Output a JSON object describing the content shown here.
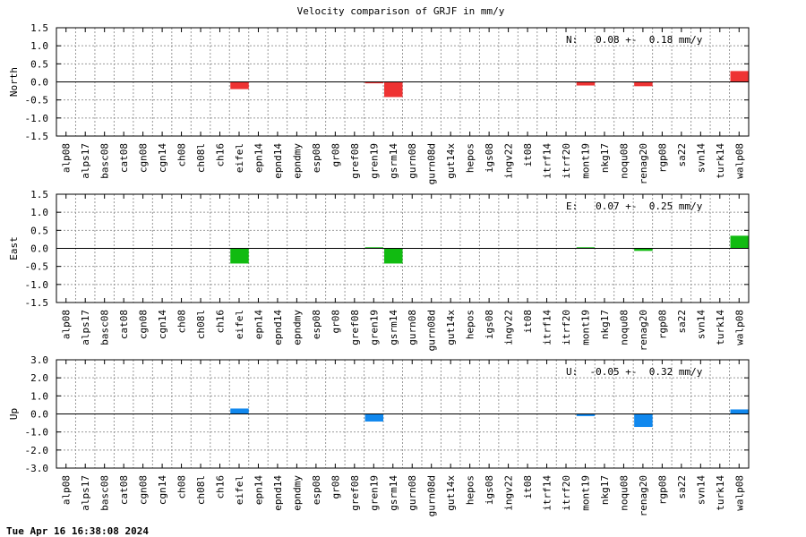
{
  "title": "Velocity comparison of GRJF in mm/y",
  "timestamp": "Tue Apr 16 16:38:08 2024",
  "chart_data": [
    {
      "type": "bar",
      "ylabel": "North",
      "color": "#ee3333",
      "ylim": [
        -1.5,
        1.5
      ],
      "yticks": [
        "1.5",
        "1.0",
        "0.5",
        "0.0",
        "-0.5",
        "-1.0",
        "-1.5"
      ],
      "annotation": "N:   0.08 +-  0.18 mm/y",
      "grid": true,
      "categories": [
        "alp08",
        "alps17",
        "basc08",
        "cat08",
        "cgn08",
        "cgn14",
        "ch08",
        "ch08l",
        "ch16",
        "eifel",
        "epn14",
        "epnd14",
        "epndmy",
        "esp08",
        "gr08",
        "gref08",
        "gren19",
        "gsrm14",
        "gurn08",
        "gurn08d",
        "gut14x",
        "hepos",
        "igs08",
        "ingv22",
        "it08",
        "itrf14",
        "itrf20",
        "mont19",
        "nkg17",
        "noqu08",
        "renag20",
        "rgp08",
        "sa22",
        "svn14",
        "turk14",
        "walp08"
      ],
      "values": [
        0,
        0,
        0,
        0,
        0,
        0,
        0,
        0,
        0,
        -0.2,
        0,
        0,
        0,
        0,
        0,
        0,
        -0.04,
        -0.42,
        0,
        0,
        0,
        0,
        0,
        0,
        0,
        0,
        0,
        -0.1,
        0,
        0,
        -0.12,
        0,
        0,
        0,
        0,
        0.3
      ]
    },
    {
      "type": "bar",
      "ylabel": "East",
      "color": "#11bb11",
      "ylim": [
        -1.5,
        1.5
      ],
      "yticks": [
        "1.5",
        "1.0",
        "0.5",
        "0.0",
        "-0.5",
        "-1.0",
        "-1.5"
      ],
      "annotation": "E:   0.07 +-  0.25 mm/y",
      "grid": true,
      "categories": [
        "alp08",
        "alps17",
        "basc08",
        "cat08",
        "cgn08",
        "cgn14",
        "ch08",
        "ch08l",
        "ch16",
        "eifel",
        "epn14",
        "epnd14",
        "epndmy",
        "esp08",
        "gr08",
        "gref08",
        "gren19",
        "gsrm14",
        "gurn08",
        "gurn08d",
        "gut14x",
        "hepos",
        "igs08",
        "ingv22",
        "it08",
        "itrf14",
        "itrf20",
        "mont19",
        "nkg17",
        "noqu08",
        "renag20",
        "rgp08",
        "sa22",
        "svn14",
        "turk14",
        "walp08"
      ],
      "values": [
        0,
        0,
        0,
        0,
        0,
        0,
        0,
        0,
        0,
        -0.42,
        0,
        0,
        0,
        0,
        0,
        0,
        0.03,
        -0.42,
        0,
        0,
        0,
        0,
        0,
        0,
        0,
        0,
        0,
        0.03,
        0,
        0,
        -0.07,
        0,
        0,
        0,
        0,
        0.35
      ]
    },
    {
      "type": "bar",
      "ylabel": "Up",
      "color": "#1188ee",
      "ylim": [
        -3.0,
        3.0
      ],
      "yticks": [
        "3.0",
        "2.0",
        "1.0",
        "0.0",
        "-1.0",
        "-2.0",
        "-3.0"
      ],
      "annotation": "U:  -0.05 +-  0.32 mm/y",
      "grid": true,
      "categories": [
        "alp08",
        "alps17",
        "basc08",
        "cat08",
        "cgn08",
        "cgn14",
        "ch08",
        "ch08l",
        "ch16",
        "eifel",
        "epn14",
        "epnd14",
        "epndmy",
        "esp08",
        "gr08",
        "gref08",
        "gren19",
        "gsrm14",
        "gurn08",
        "gurn08d",
        "gut14x",
        "hepos",
        "igs08",
        "ingv22",
        "it08",
        "itrf14",
        "itrf20",
        "mont19",
        "nkg17",
        "noqu08",
        "renag20",
        "rgp08",
        "sa22",
        "svn14",
        "turk14",
        "walp08"
      ],
      "values": [
        0,
        0,
        0,
        0,
        0,
        0,
        0,
        0,
        0,
        0.3,
        0,
        0,
        0,
        0,
        0,
        0,
        -0.42,
        0,
        0,
        0,
        0,
        0,
        0,
        0,
        0,
        0,
        0,
        -0.12,
        0,
        0,
        -0.72,
        0,
        0,
        0,
        0,
        0.25
      ]
    }
  ]
}
